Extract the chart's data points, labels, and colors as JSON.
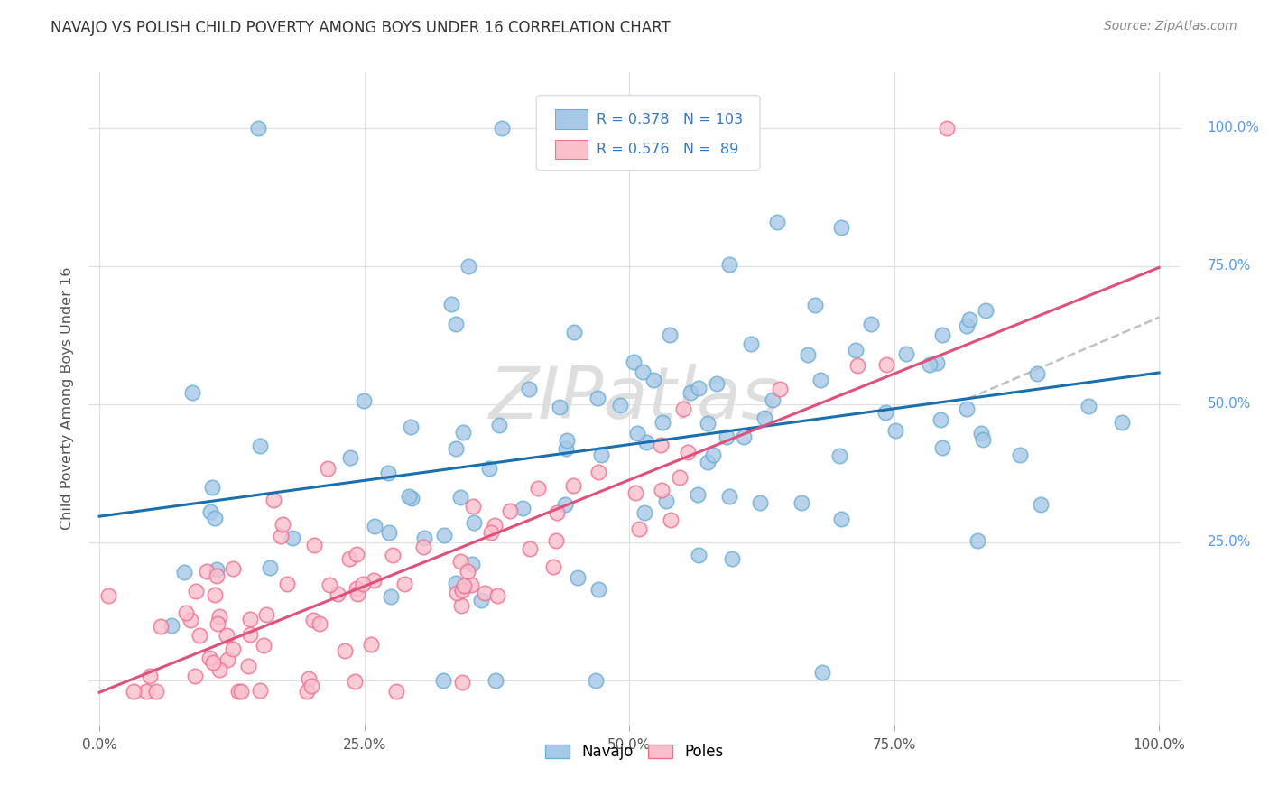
{
  "title": "NAVAJO VS POLISH CHILD POVERTY AMONG BOYS UNDER 16 CORRELATION CHART",
  "source": "Source: ZipAtlas.com",
  "ylabel": "Child Poverty Among Boys Under 16",
  "navajo_R": 0.378,
  "navajo_N": 103,
  "poles_R": 0.576,
  "poles_N": 89,
  "navajo_dot_color": "#a8c8e8",
  "navajo_edge_color": "#6baed6",
  "poles_dot_color": "#f9c0cc",
  "poles_edge_color": "#f07090",
  "trend_navajo_color": "#1a6faf",
  "trend_poles_color": "#e0507a",
  "trend_dashed_color": "#c0c0c0",
  "background_color": "#ffffff",
  "grid_color": "#e0e0e0",
  "ytick_color": "#5599ee",
  "xtick_color": "#555555",
  "title_color": "#333333",
  "source_color": "#888888",
  "ylabel_color": "#555555",
  "legend_box_color": "#dddddd",
  "legend_text_color": "#3377cc"
}
